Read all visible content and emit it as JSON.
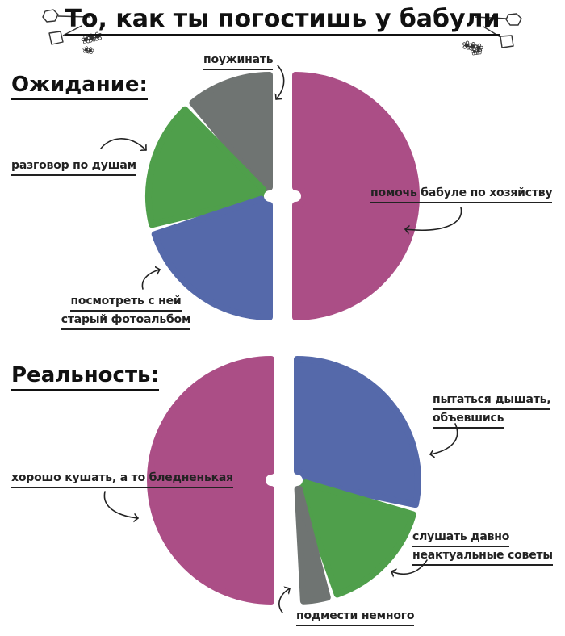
{
  "title": "То, как ты погостишь у бабули",
  "palette": {
    "magenta": "#ab4e86",
    "green": "#4f9f4b",
    "blue": "#5569aa",
    "gray": "#6f7472",
    "ink": "#222222"
  },
  "icons": {
    "flower_cluster_large": "❀❀❀",
    "flower_cluster_small": "❀❀"
  },
  "chart_data": [
    {
      "type": "pie",
      "title": "Ожидание:",
      "unit": "percent",
      "legend": "none",
      "slices": [
        {
          "name": "have-dinner",
          "label": "поужинать",
          "lines": [
            "поужинать"
          ],
          "value": 12,
          "color_key": "gray",
          "start_angle": 318,
          "end_angle": 360,
          "half": "left"
        },
        {
          "name": "heart-to-heart-talk",
          "label": "разговор по душам",
          "lines": [
            "разговор по душам"
          ],
          "value": 18,
          "color_key": "green",
          "start_angle": 254,
          "end_angle": 318,
          "half": "left"
        },
        {
          "name": "old-photo-album",
          "label": "посмотреть с ней старый фотоальбом",
          "lines": [
            "посмотреть с ней",
            "старый фотоальбом"
          ],
          "value": 20,
          "color_key": "blue",
          "start_angle": 180,
          "end_angle": 254,
          "half": "left"
        },
        {
          "name": "help-grandma-housework",
          "label": "помочь бабуле по хозяйству",
          "lines": [
            "помочь бабуле по хозяйству"
          ],
          "value": 50,
          "color_key": "magenta",
          "start_angle": 0,
          "end_angle": 180,
          "half": "right"
        }
      ]
    },
    {
      "type": "pie",
      "title": "Реальность:",
      "unit": "percent",
      "legend": "none",
      "slices": [
        {
          "name": "try-to-breathe-overeaten",
          "label": "пытаться дышать, объевшись",
          "lines": [
            "пытаться дышать,",
            "объевшись"
          ],
          "value": 29,
          "color_key": "blue",
          "start_angle": 0,
          "end_angle": 104,
          "half": "right"
        },
        {
          "name": "outdated-advice",
          "label": "слушать давно неактуальные советы",
          "lines": [
            "слушать давно",
            "неактуальные советы"
          ],
          "value": 17,
          "color_key": "green",
          "start_angle": 104,
          "end_angle": 163,
          "half": "right"
        },
        {
          "name": "sweep-a-little",
          "label": "подмести немного",
          "lines": [
            "подмести немного"
          ],
          "value": 4,
          "color_key": "gray",
          "start_angle": 163,
          "end_angle": 177,
          "half": "right"
        },
        {
          "name": "eat-well",
          "label": "хорошо кушать, а то бледненькая",
          "lines": [
            "хорошо кушать, а то бледненькая"
          ],
          "value": 50,
          "color_key": "magenta",
          "start_angle": 180,
          "end_angle": 360,
          "half": "left"
        }
      ]
    }
  ]
}
